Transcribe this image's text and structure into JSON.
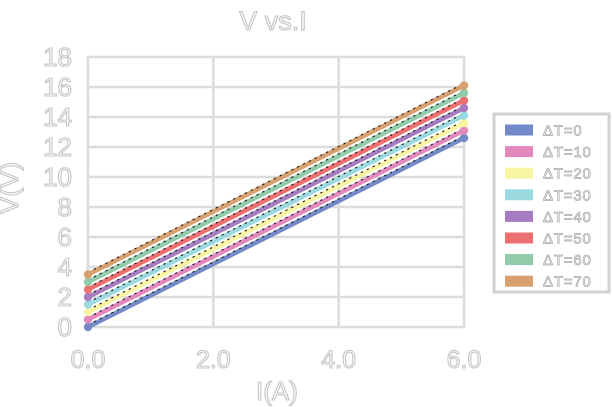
{
  "chart_data": {
    "type": "line",
    "title": "V vs.I",
    "xlabel": "I(A)",
    "ylabel": "V(V)",
    "xlim": [
      0,
      6
    ],
    "ylim": [
      0,
      18
    ],
    "grid": true,
    "x_tick_values": [
      0,
      2,
      4,
      6
    ],
    "x_tick_labels": [
      "0.0",
      "2.0",
      "4.0",
      "6.0"
    ],
    "y_tick_values": [
      0,
      2,
      4,
      6,
      8,
      10,
      12,
      14,
      16,
      18
    ],
    "y_tick_labels": [
      "0",
      "2",
      "4",
      "6",
      "8",
      "10",
      "12",
      "14",
      "16",
      "18"
    ],
    "x": [
      0,
      6
    ],
    "series": [
      {
        "name": "ΔT=0",
        "color": "#7389c8",
        "values": [
          0.0,
          12.6
        ]
      },
      {
        "name": "ΔT=10",
        "color": "#e388bc",
        "values": [
          0.5,
          13.1
        ]
      },
      {
        "name": "ΔT=20",
        "color": "#faf5a3",
        "values": [
          1.0,
          13.6
        ]
      },
      {
        "name": "ΔT=30",
        "color": "#9ad9e0",
        "values": [
          1.5,
          14.1
        ]
      },
      {
        "name": "ΔT=40",
        "color": "#a57cbf",
        "values": [
          2.0,
          14.6
        ]
      },
      {
        "name": "ΔT=50",
        "color": "#ee6f70",
        "values": [
          2.5,
          15.1
        ]
      },
      {
        "name": "ΔT=60",
        "color": "#90cbaa",
        "values": [
          3.0,
          15.6
        ]
      },
      {
        "name": "ΔT=70",
        "color": "#d8a06e",
        "values": [
          3.5,
          16.1
        ]
      }
    ],
    "fit_lines": {
      "visible": true,
      "style": "dotted",
      "color": "#1a1a1a"
    },
    "markers": "circle-at-endpoints",
    "legend_position": "right-outside"
  },
  "style": {
    "background": "#ffffff",
    "grid_color": "#dcdcdc",
    "text_fill": "#ffffff",
    "text_outline": "#c4c4c4",
    "legend_text_outline": "#aaaaaa",
    "legend_border": "#d2d2d2",
    "line_width": 4.5
  }
}
